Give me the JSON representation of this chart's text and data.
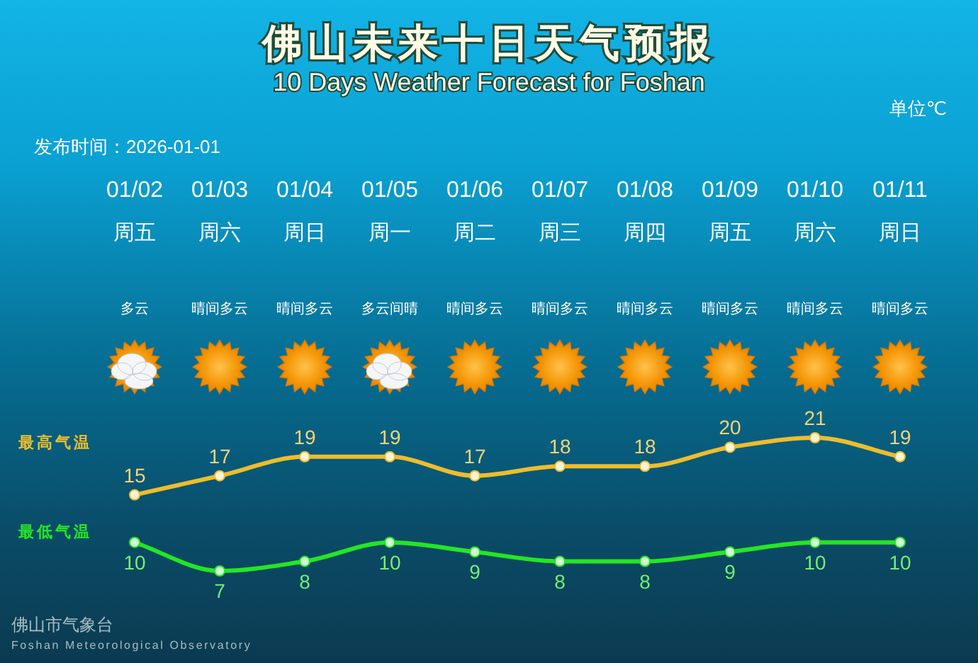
{
  "chart_data": {
    "type": "line",
    "title": "佛山未来十日天气预报",
    "subtitle": "10 Days Weather Forecast for Foshan",
    "annotations": [
      "发布时间：2026-01-01",
      "单位℃",
      "佛山市气象台",
      "Foshan Meteorological Observatory",
      "多云",
      "晴间多云",
      "晴间多云",
      "多云间晴",
      "晴间多云",
      "晴间多云",
      "晴间多云",
      "晴间多云",
      "晴间多云",
      "晴间多云"
    ],
    "categories": [
      "01/02\n周五",
      "01/03\n周六",
      "01/04\n周日",
      "01/05\n周一",
      "01/06\n周二",
      "01/07\n周三",
      "01/08\n周四",
      "01/09\n周五",
      "01/10\n周六",
      "01/11\n周日"
    ],
    "series": [
      {
        "name": "最高气温",
        "color": "#efbd2c",
        "values": [
          15,
          17,
          19,
          19,
          17,
          18,
          18,
          20,
          21,
          19
        ]
      },
      {
        "name": "最低气温",
        "color": "#24e624",
        "values": [
          10,
          7,
          8,
          10,
          9,
          8,
          8,
          9,
          10,
          10
        ]
      }
    ],
    "data_labels": true,
    "marker": "circle"
  }
}
